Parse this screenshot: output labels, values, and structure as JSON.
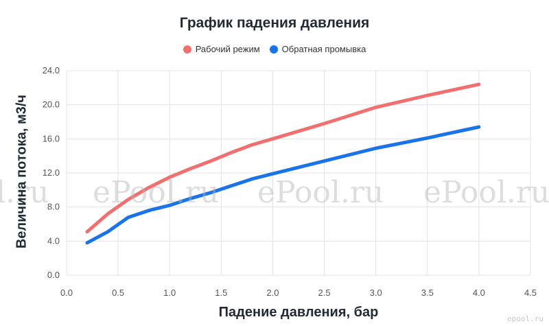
{
  "chart_data": {
    "type": "line",
    "title": "График падения давления",
    "xlabel": "Падение давления, бар",
    "ylabel": "Величина потока, м3/ч",
    "xlim": [
      0,
      4.5
    ],
    "ylim": [
      0,
      24
    ],
    "x_ticks": [
      "0.0",
      "0.5",
      "1.0",
      "1.5",
      "2.0",
      "2.5",
      "3.0",
      "3.5",
      "4.0",
      "4.5"
    ],
    "y_ticks": [
      "0.0",
      "4.0",
      "8.0",
      "12.0",
      "16.0",
      "20.0",
      "24.0"
    ],
    "grid": true,
    "legend_position": "top-center",
    "series": [
      {
        "name": "Рабочий режим",
        "color": "#f07070",
        "x": [
          0.2,
          0.4,
          0.6,
          0.8,
          1.0,
          1.2,
          1.4,
          1.6,
          1.8,
          2.0,
          2.5,
          3.0,
          3.5,
          4.0
        ],
        "y": [
          5.1,
          7.2,
          8.9,
          10.3,
          11.5,
          12.5,
          13.4,
          14.4,
          15.3,
          16.0,
          17.8,
          19.7,
          21.1,
          22.4
        ]
      },
      {
        "name": "Обратная промывка",
        "color": "#1a73e8",
        "x": [
          0.2,
          0.4,
          0.6,
          0.8,
          1.0,
          1.2,
          1.4,
          1.6,
          1.8,
          2.0,
          2.5,
          3.0,
          3.5,
          4.0
        ],
        "y": [
          3.8,
          5.1,
          6.8,
          7.6,
          8.2,
          9.0,
          9.7,
          10.5,
          11.3,
          11.9,
          13.4,
          14.9,
          16.1,
          17.4
        ]
      }
    ]
  },
  "watermark": {
    "texts": [
      "l.ru",
      "ePool.ru",
      "ePool.ru",
      "ePool.ru"
    ],
    "corner": "epool.ru"
  }
}
